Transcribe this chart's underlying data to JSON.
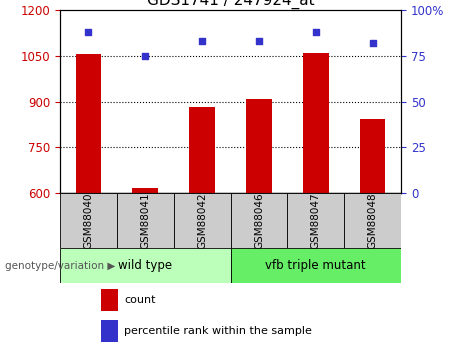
{
  "title": "GDS1741 / 247924_at",
  "categories": [
    "GSM88040",
    "GSM88041",
    "GSM88042",
    "GSM88046",
    "GSM88047",
    "GSM88048"
  ],
  "red_values": [
    1057,
    617,
    882,
    910,
    1060,
    845
  ],
  "blue_values": [
    88,
    75,
    83,
    83,
    88,
    82
  ],
  "ylim_left": [
    600,
    1200
  ],
  "ylim_right": [
    0,
    100
  ],
  "yticks_left": [
    600,
    750,
    900,
    1050,
    1200
  ],
  "yticks_right": [
    0,
    25,
    50,
    75,
    100
  ],
  "group1_label": "wild type",
  "group2_label": "vfb triple mutant",
  "group1_indices": [
    0,
    1,
    2
  ],
  "group2_indices": [
    3,
    4,
    5
  ],
  "legend_red": "count",
  "legend_blue": "percentile rank within the sample",
  "genotype_label": "genotype/variation",
  "bar_color": "#cc0000",
  "dot_color": "#3333cc",
  "group1_color": "#bbffbb",
  "group2_color": "#66ee66",
  "grey_box_color": "#cccccc",
  "bar_width": 0.45,
  "title_fontsize": 11,
  "tick_fontsize": 8.5,
  "dotted_lines": [
    750,
    900,
    1050
  ]
}
